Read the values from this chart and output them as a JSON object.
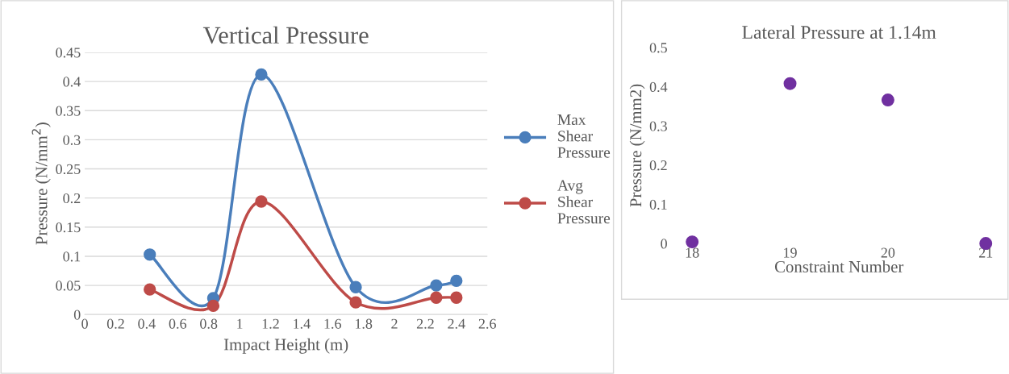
{
  "chart_data": [
    {
      "type": "line",
      "title": "Vertical Pressure",
      "xlabel": "Impact Height (m)",
      "ylabel": "Pressure (N/mm$^{2}$)",
      "xlim": [
        0,
        2.6
      ],
      "xticks": [
        0,
        0.2,
        0.4,
        0.6,
        0.8,
        1,
        1.2,
        1.4,
        1.6,
        1.8,
        2,
        2.2,
        2.4,
        2.6
      ],
      "ylim": [
        0,
        0.45
      ],
      "yticks": [
        0,
        0.05,
        0.1,
        0.15,
        0.2,
        0.25,
        0.3,
        0.35,
        0.4,
        0.45
      ],
      "x": [
        0.42,
        0.83,
        1.14,
        1.75,
        2.27,
        2.4
      ],
      "series": [
        {
          "name": "Max Shear Pressure",
          "color": "#4a7ebb",
          "values": [
            0.103,
            0.028,
            0.412,
            0.047,
            0.05,
            0.058
          ]
        },
        {
          "name": "Avg Shear Pressure",
          "color": "#be4b48",
          "values": [
            0.043,
            0.015,
            0.194,
            0.021,
            0.029,
            0.029
          ]
        }
      ],
      "marker": "circle",
      "grid": "y",
      "legend": "right"
    },
    {
      "type": "scatter",
      "title": "Lateral Pressure at 1.14m",
      "xlabel": "Constraint Number",
      "ylabel": "Pressure (N/mm2)",
      "xlim": [
        18,
        21
      ],
      "xticks": [
        18,
        19,
        20,
        21
      ],
      "ylim": [
        0,
        0.5
      ],
      "yticks": [
        0,
        0.1,
        0.2,
        0.3,
        0.4,
        0.5
      ],
      "x": [
        18,
        19,
        20,
        21
      ],
      "series": [
        {
          "color": "#7030a0",
          "values": [
            0.004,
            0.408,
            0.366,
            0.0
          ]
        }
      ],
      "marker": "circle",
      "grid": false,
      "legend": false
    }
  ]
}
